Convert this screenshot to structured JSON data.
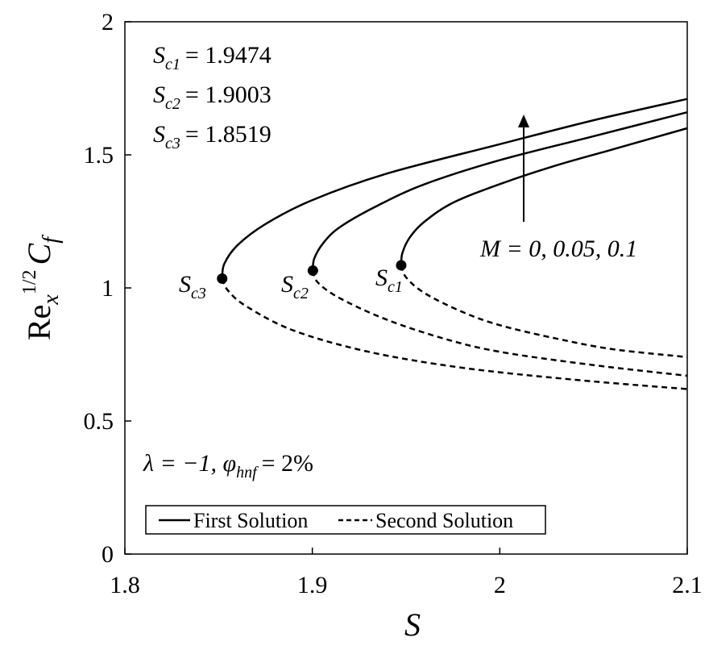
{
  "chart_data": {
    "type": "line",
    "xlim": [
      1.8,
      2.1
    ],
    "ylim": [
      0,
      2
    ],
    "x_ticks": [
      "1.8",
      "1.9",
      "2",
      "2.1"
    ],
    "y_ticks": [
      "0",
      "0.5",
      "1",
      "1.5",
      "2"
    ],
    "xlabel": "S",
    "ylabel": {
      "base": "Re",
      "sub": "x",
      "sup": "1/2",
      "tail": "C",
      "tail_sub": "f"
    },
    "grid": false,
    "legend": {
      "position": "bottom",
      "entries": [
        {
          "label": "First Solution",
          "style": "solid"
        },
        {
          "label": "Second Solution",
          "style": "dashed"
        }
      ]
    },
    "annotations": {
      "critical_values": [
        {
          "sym": "S",
          "sub": "c1",
          "text": "= 1.9474"
        },
        {
          "sym": "S",
          "sub": "c2",
          "text": "= 1.9003"
        },
        {
          "sym": "S",
          "sub": "c3",
          "text": "= 1.8519"
        }
      ],
      "params": "λ = −1, φ",
      "params_sub": "hnf",
      "params_tail": "= 2%",
      "arrow_label": "M = 0, 0.05, 0.1",
      "point_labels": [
        {
          "sym": "S",
          "sub": "c1"
        },
        {
          "sym": "S",
          "sub": "c2"
        },
        {
          "sym": "S",
          "sub": "c3"
        }
      ]
    },
    "critical_points": [
      {
        "name": "S_c1",
        "x": 1.9474,
        "y": 1.085
      },
      {
        "name": "S_c2",
        "x": 1.9003,
        "y": 1.065
      },
      {
        "name": "S_c3",
        "x": 1.8519,
        "y": 1.035
      }
    ],
    "series": [
      {
        "name": "First Solution",
        "style": "solid",
        "x": [
          1.9474,
          1.948,
          1.952,
          1.96,
          1.975,
          2.0,
          2.03,
          2.06,
          2.1
        ],
        "y": [
          1.085,
          1.13,
          1.19,
          1.25,
          1.32,
          1.39,
          1.46,
          1.52,
          1.6
        ]
      },
      {
        "name": "First Solution",
        "style": "solid",
        "x": [
          1.9003,
          1.901,
          1.906,
          1.915,
          1.935,
          1.96,
          2.0,
          2.05,
          2.1
        ],
        "y": [
          1.065,
          1.11,
          1.17,
          1.23,
          1.31,
          1.39,
          1.48,
          1.57,
          1.66
        ]
      },
      {
        "name": "First Solution",
        "style": "solid",
        "x": [
          1.8519,
          1.853,
          1.86,
          1.875,
          1.9,
          1.94,
          2.0,
          2.05,
          2.1
        ],
        "y": [
          1.035,
          1.09,
          1.16,
          1.24,
          1.33,
          1.43,
          1.54,
          1.63,
          1.71
        ]
      },
      {
        "name": "Second Solution",
        "style": "dashed",
        "x": [
          1.9474,
          1.95,
          1.96,
          1.98,
          2.0,
          2.03,
          2.06,
          2.1
        ],
        "y": [
          1.085,
          1.04,
          0.98,
          0.91,
          0.86,
          0.81,
          0.77,
          0.74
        ]
      },
      {
        "name": "Second Solution",
        "style": "dashed",
        "x": [
          1.9003,
          1.903,
          1.915,
          1.94,
          1.97,
          2.0,
          2.05,
          2.1
        ],
        "y": [
          1.065,
          1.02,
          0.96,
          0.88,
          0.81,
          0.76,
          0.71,
          0.67
        ]
      },
      {
        "name": "Second Solution",
        "style": "dashed",
        "x": [
          1.8519,
          1.855,
          1.865,
          1.89,
          1.93,
          1.98,
          2.04,
          2.1
        ],
        "y": [
          1.035,
          0.99,
          0.93,
          0.84,
          0.76,
          0.7,
          0.655,
          0.62
        ]
      }
    ]
  }
}
